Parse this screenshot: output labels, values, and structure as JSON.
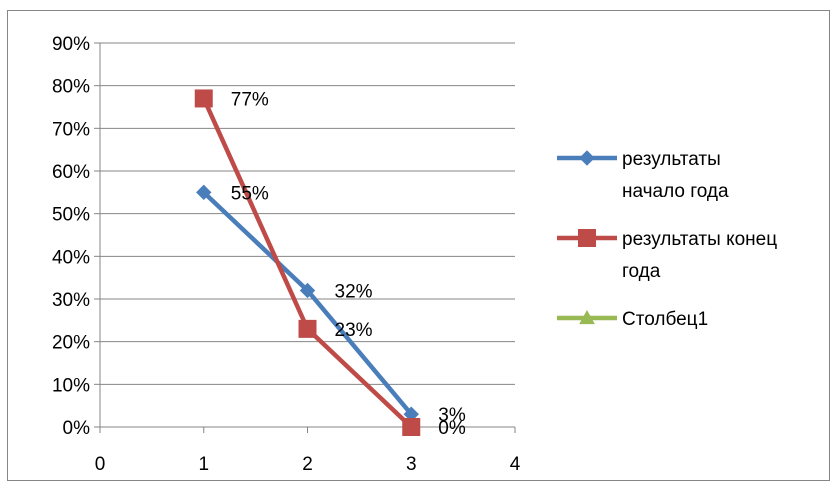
{
  "chart_data": {
    "type": "line",
    "xlim": [
      0,
      4
    ],
    "ylim": [
      0,
      0.9
    ],
    "x_ticks": [
      "0",
      "1",
      "2",
      "3",
      "4"
    ],
    "y_ticks": [
      "0%",
      "10%",
      "20%",
      "30%",
      "40%",
      "50%",
      "60%",
      "70%",
      "80%",
      "90%"
    ],
    "grid": "horizontal",
    "legend_position": "right",
    "series": [
      {
        "name": "результаты начало года",
        "name_lines": [
          "результаты",
          "начало года"
        ],
        "color": "#4a7ebb",
        "marker": "diamond",
        "x": [
          1,
          2,
          3
        ],
        "values": [
          0.55,
          0.32,
          0.03
        ],
        "data_labels": [
          "55%",
          "32%",
          "3%"
        ]
      },
      {
        "name": "результаты конец года",
        "name_lines": [
          "результаты конец",
          "года"
        ],
        "color": "#be4b48",
        "marker": "square",
        "x": [
          1,
          2,
          3
        ],
        "values": [
          0.77,
          0.23,
          0.0
        ],
        "data_labels": [
          "77%",
          "23%",
          "0%"
        ]
      },
      {
        "name": "Столбец1",
        "name_lines": [
          "Столбец1"
        ],
        "color": "#98b954",
        "marker": "triangle",
        "x": [],
        "values": [],
        "data_labels": []
      }
    ]
  }
}
